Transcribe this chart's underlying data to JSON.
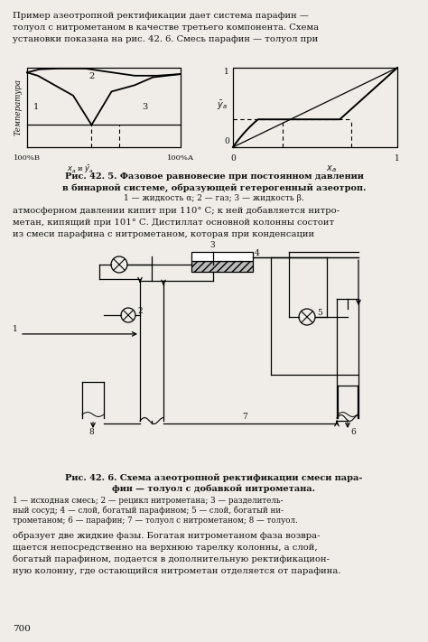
{
  "bg_color": "#f0ede8",
  "figsize": [
    4.74,
    7.11
  ],
  "dpi": 100,
  "top_text": [
    "Пример азеотропной ректификации дает система парафин —",
    "толуол с нитрометаном в качестве третьего компонента. Схема",
    "установки показана на рис. 42. 6. Смесь парафин — толуол при"
  ],
  "mid_text": [
    "атмосферном давлении кипит при 110° С; к ней добавляется нитро-",
    "метан, кипящий при 101° С. Дистиллат основной колонны состоит",
    "из смеси парафина с нитрометаном, которая при конденсации"
  ],
  "cap1_lines": [
    "Рис. 42. 5. Фазовое равновесие при постоянном давлении",
    "в бинарной системе, образующей гетерогенный азеотроп.",
    "1 — жидкость α; 2 — газ; 3 — жидкость β."
  ],
  "cap2_lines": [
    "Рис. 42. 6. Схема азеотропной ректификации смеси пара-",
    "фин — толуол с добавкой нитрометана."
  ],
  "cap2_detail": [
    "1 — исходная смесь; 2 — рецикл нитрометана; 3 — разделитель-",
    "ный сосуд; 4 — слой, богатый парафином; 5 — слой, богатый ни-",
    "трометаном; 6 — парафин; 7 — толуол с нитрометаном; 8 — толуол."
  ],
  "bot_text": [
    "образует две жидкие фазы. Богатая нитрометаном фаза возвра-",
    "щается непосредственно на верхнюю тарелку колонны, а слой,",
    "богатый парафином, подается в дополнительную ректификацион-",
    "ную колонну, где остающийся нитрометан отделяется от парафина."
  ]
}
